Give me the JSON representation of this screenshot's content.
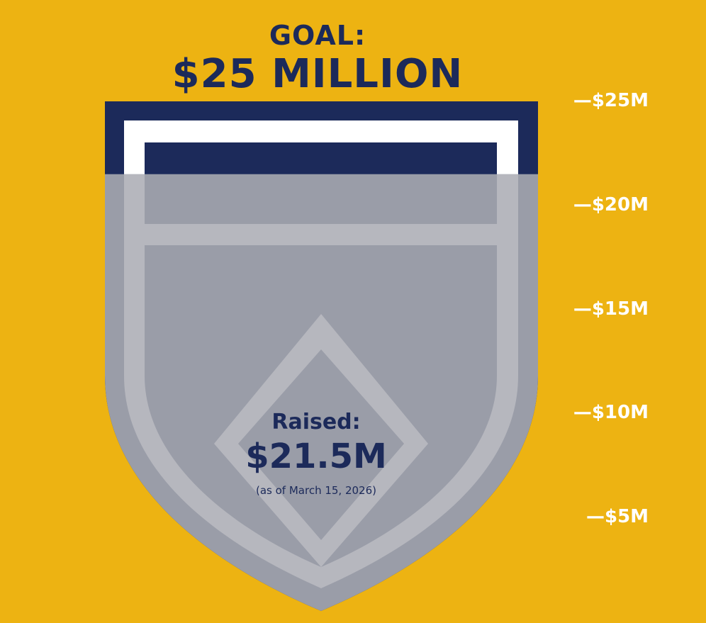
{
  "colors": {
    "background": "#EDB312",
    "navy": "#1C2A5A",
    "shield_gray": "#9A9DA8",
    "shield_light": "#B6B7BE",
    "tick_text": "#FFFFFF"
  },
  "goal": {
    "label": "GOAL:",
    "amount": "$25 MILLION"
  },
  "raised": {
    "label": "Raised:",
    "amount": "$21.5M",
    "as_of": "(as of March 15, 2026)"
  },
  "axis": {
    "ticks": [
      "—$25M",
      "—$20M",
      "—$15M",
      "—$10M",
      "—$5M"
    ]
  },
  "chart_data": {
    "type": "bar",
    "categories": [
      "Raised"
    ],
    "values": [
      21.5
    ],
    "goal": 25,
    "unit": "$M",
    "ylim": [
      0,
      25
    ],
    "tick_values": [
      25,
      20,
      15,
      10,
      5
    ],
    "tick_labels": [
      "—$25M",
      "—$20M",
      "—$15M",
      "—$10M",
      "—$5M"
    ],
    "title": "GOAL: $25 MILLION"
  }
}
